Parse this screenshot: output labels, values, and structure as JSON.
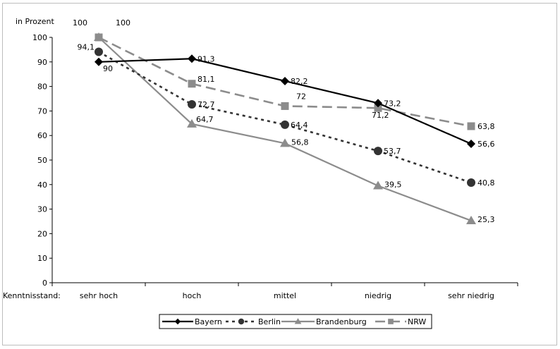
{
  "chart_data": {
    "type": "line",
    "ylabel": "in Prozent",
    "xlabel": "Kenntnisstand:",
    "categories": [
      "sehr hoch",
      "hoch",
      "mittel",
      "niedrig",
      "sehr niedrig"
    ],
    "ylim": [
      0,
      100
    ],
    "yticks": [
      0,
      10,
      20,
      30,
      40,
      50,
      60,
      70,
      80,
      90,
      100
    ],
    "grid": false,
    "legend_position": "bottom",
    "series": [
      {
        "name": "Bayern",
        "values": [
          90,
          91.3,
          82.2,
          73.2,
          56.6
        ],
        "labels": [
          "90",
          "91,3",
          "82,2",
          "73,2",
          "56,6"
        ],
        "color": "#000000",
        "dash": "solid",
        "marker": "diamond"
      },
      {
        "name": "Berlin",
        "values": [
          94.1,
          72.7,
          64.4,
          53.7,
          40.8
        ],
        "labels": [
          "94,1",
          "72,7",
          "64,4",
          "53,7",
          "40,8"
        ],
        "color": "#333333",
        "dash": "dotted",
        "marker": "circle"
      },
      {
        "name": "Brandenburg",
        "values": [
          100,
          64.7,
          56.8,
          39.5,
          25.3
        ],
        "labels": [
          "100",
          "64,7",
          "56,8",
          "39,5",
          "25,3"
        ],
        "color": "#8c8c8c",
        "dash": "solid",
        "marker": "triangle"
      },
      {
        "name": "NRW",
        "values": [
          100,
          81.1,
          72,
          71.2,
          63.8
        ],
        "labels": [
          "100",
          "81,1",
          "72",
          "71,2",
          "63,8"
        ],
        "color": "#8c8c8c",
        "dash": "dashed",
        "marker": "square"
      }
    ]
  }
}
